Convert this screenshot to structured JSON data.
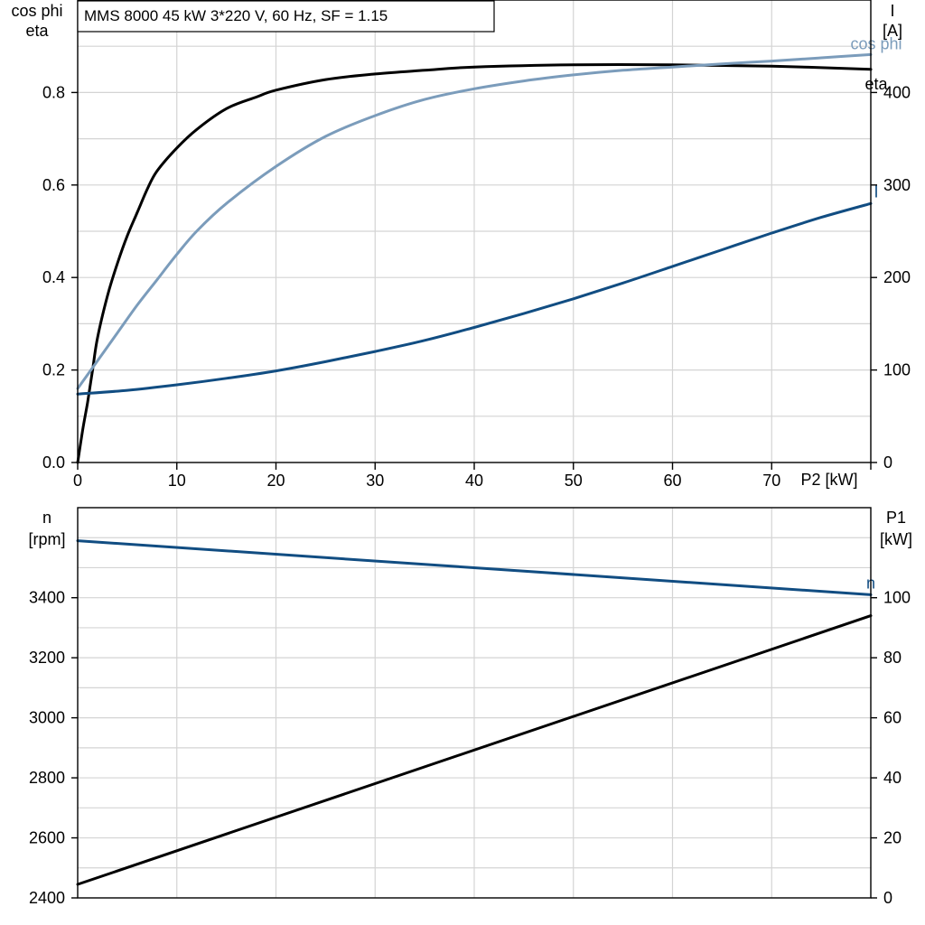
{
  "chart_data": [
    {
      "type": "line",
      "title": "MMS 8000   45 kW   3*220 V, 60 Hz, SF = 1.15",
      "ylabel_left": [
        "cos phi",
        "eta"
      ],
      "ylabel_right": [
        "I",
        "[A]"
      ],
      "xlabel": "P2 [kW]",
      "xlim": [
        0,
        80
      ],
      "ylim_left": [
        0,
        1.0
      ],
      "ylim_right": [
        0,
        500
      ],
      "x_ticks": [
        "0",
        "10",
        "20",
        "30",
        "40",
        "50",
        "60",
        "70"
      ],
      "y_left_ticks": [
        "0.0",
        "0.2",
        "0.4",
        "0.6",
        "0.8"
      ],
      "y_right_ticks": [
        "0",
        "100",
        "200",
        "300",
        "400"
      ],
      "grid": true,
      "series": [
        {
          "name": "eta",
          "axis": "left",
          "color": "#000000",
          "x": [
            0,
            0.5,
            1,
            1.5,
            2,
            3,
            4,
            5,
            6,
            7,
            8,
            10,
            12,
            15,
            18,
            20,
            25,
            30,
            35,
            40,
            50,
            60,
            70,
            80
          ],
          "y": [
            0.0,
            0.07,
            0.13,
            0.2,
            0.27,
            0.36,
            0.43,
            0.49,
            0.54,
            0.59,
            0.63,
            0.68,
            0.72,
            0.765,
            0.79,
            0.805,
            0.828,
            0.84,
            0.848,
            0.855,
            0.86,
            0.86,
            0.857,
            0.85
          ]
        },
        {
          "name": "cos phi",
          "axis": "left",
          "color": "#7b9cbb",
          "x": [
            0,
            2,
            4,
            6,
            8,
            10,
            12,
            15,
            20,
            25,
            30,
            35,
            40,
            45,
            50,
            55,
            60,
            65,
            70,
            75,
            80
          ],
          "y": [
            0.16,
            0.22,
            0.28,
            0.34,
            0.395,
            0.45,
            0.5,
            0.56,
            0.64,
            0.705,
            0.75,
            0.785,
            0.808,
            0.825,
            0.838,
            0.848,
            0.855,
            0.862,
            0.868,
            0.875,
            0.882
          ]
        },
        {
          "name": "I",
          "axis": "right",
          "color": "#114d82",
          "x": [
            0,
            5,
            10,
            15,
            20,
            25,
            30,
            35,
            40,
            45,
            50,
            55,
            60,
            65,
            70,
            75,
            80
          ],
          "y": [
            74,
            78,
            84,
            91,
            99,
            109,
            120,
            132,
            146,
            161,
            177,
            194,
            212,
            230,
            248,
            265,
            280
          ]
        }
      ]
    },
    {
      "type": "line",
      "ylabel_left": [
        "n",
        "[rpm]"
      ],
      "ylabel_right": [
        "P1",
        "[kW]"
      ],
      "xlim": [
        0,
        80
      ],
      "ylim_left": [
        2400,
        3700
      ],
      "ylim_right": [
        0,
        130
      ],
      "y_left_ticks": [
        "2400",
        "2600",
        "2800",
        "3000",
        "3200",
        "3400"
      ],
      "y_right_ticks": [
        "0",
        "20",
        "40",
        "60",
        "80",
        "100"
      ],
      "grid": true,
      "series": [
        {
          "name": "n",
          "axis": "left",
          "color": "#114d82",
          "x": [
            0,
            80
          ],
          "y": [
            3590,
            3410
          ]
        },
        {
          "name": "",
          "axis": "right",
          "color": "#000000",
          "x": [
            0,
            80
          ],
          "y": [
            4.5,
            94
          ]
        }
      ]
    }
  ]
}
